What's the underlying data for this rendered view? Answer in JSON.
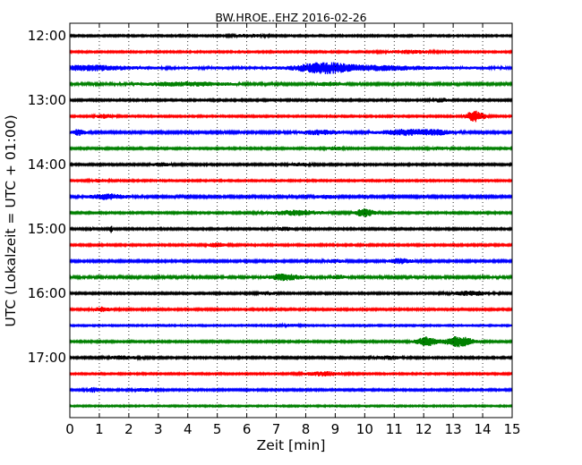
{
  "chart_data": {
    "type": "line",
    "title": "BW.HROE..EHZ 2016-02-26",
    "xlabel": "Zeit  [min]",
    "ylabel": "UTC (Lokalzeit = UTC + 01:00)",
    "xlim": [
      0,
      15
    ],
    "x_ticks": [
      "0",
      "1",
      "2",
      "3",
      "4",
      "5",
      "6",
      "7",
      "8",
      "9",
      "10",
      "11",
      "12",
      "13",
      "14",
      "15"
    ],
    "y_tick_labels": [
      "12:00",
      "13:00",
      "14:00",
      "15:00",
      "16:00",
      "17:00"
    ],
    "grid": "vertical dotted lines at each minute",
    "trace_colors": [
      "#000000",
      "#ff0000",
      "#0000ff",
      "#008000"
    ],
    "rows": [
      {
        "start": "12:00",
        "noise": 0.9,
        "events": [
          [
            6.1,
            0.5,
            1.5
          ]
        ]
      },
      {
        "start": "12:15",
        "noise": 0.9,
        "events": [
          [
            11.5,
            0.8,
            1.6
          ]
        ]
      },
      {
        "start": "12:30",
        "noise": 1.6,
        "events": [
          [
            0.7,
            1.2,
            2.2
          ],
          [
            8.6,
            0.9,
            5.0
          ],
          [
            10.5,
            1.5,
            1.8
          ]
        ]
      },
      {
        "start": "12:45",
        "noise": 1.2,
        "events": [
          [
            3.9,
            1.5,
            1.8
          ],
          [
            8.8,
            0.4,
            1.6
          ]
        ]
      },
      {
        "start": "13:00",
        "noise": 1.0,
        "events": [
          [
            12.6,
            0.3,
            1.8
          ]
        ]
      },
      {
        "start": "13:15",
        "noise": 0.9,
        "events": [
          [
            13.75,
            0.3,
            6.0
          ],
          [
            1.2,
            0.3,
            2.0
          ]
        ]
      },
      {
        "start": "13:30",
        "noise": 1.2,
        "events": [
          [
            0.3,
            0.2,
            3.0
          ],
          [
            8.5,
            0.6,
            2.2
          ],
          [
            11.4,
            0.8,
            3.0
          ],
          [
            12.5,
            0.5,
            2.0
          ]
        ]
      },
      {
        "start": "13:45",
        "noise": 1.0,
        "events": [
          [
            9.0,
            0.3,
            1.5
          ],
          [
            12.5,
            0.3,
            1.2
          ]
        ]
      },
      {
        "start": "14:00",
        "noise": 1.0,
        "events": [
          [
            3.1,
            0.3,
            1.8
          ],
          [
            7.8,
            0.3,
            1.5
          ]
        ]
      },
      {
        "start": "14:15",
        "noise": 0.9,
        "events": [
          [
            1.0,
            0.3,
            1.4
          ]
        ]
      },
      {
        "start": "14:30",
        "noise": 1.2,
        "events": [
          [
            1.3,
            0.6,
            2.6
          ],
          [
            8.7,
            0.3,
            1.5
          ]
        ]
      },
      {
        "start": "14:45",
        "noise": 1.0,
        "events": [
          [
            7.7,
            0.9,
            2.4
          ],
          [
            10.0,
            0.3,
            4.5
          ]
        ]
      },
      {
        "start": "15:00",
        "noise": 1.0,
        "events": [
          [
            0.7,
            0.05,
            3.0
          ],
          [
            1.4,
            0.05,
            4.0
          ],
          [
            7.3,
            0.3,
            1.6
          ]
        ]
      },
      {
        "start": "15:15",
        "noise": 1.0,
        "events": [
          [
            5.0,
            0.3,
            2.0
          ]
        ]
      },
      {
        "start": "15:30",
        "noise": 1.1,
        "events": [
          [
            9.0,
            0.3,
            1.6
          ],
          [
            11.2,
            0.4,
            2.4
          ]
        ]
      },
      {
        "start": "15:45",
        "noise": 1.3,
        "events": [
          [
            7.3,
            0.5,
            3.0
          ],
          [
            9.1,
            0.2,
            1.8
          ]
        ]
      },
      {
        "start": "16:00",
        "noise": 1.0,
        "events": [
          [
            13.6,
            0.6,
            2.2
          ],
          [
            6.7,
            0.3,
            1.4
          ]
        ]
      },
      {
        "start": "16:15",
        "noise": 1.0,
        "events": [
          [
            1.1,
            0.3,
            2.4
          ]
        ]
      },
      {
        "start": "16:30",
        "noise": 0.8,
        "events": [
          [
            7.5,
            0.3,
            1.2
          ]
        ]
      },
      {
        "start": "16:45",
        "noise": 1.0,
        "events": [
          [
            12.1,
            0.35,
            5.0
          ],
          [
            13.2,
            0.45,
            5.5
          ]
        ]
      },
      {
        "start": "17:00",
        "noise": 1.0,
        "events": [
          [
            1.8,
            0.5,
            1.6
          ],
          [
            10.8,
            0.4,
            1.8
          ]
        ]
      },
      {
        "start": "17:15",
        "noise": 0.9,
        "events": [
          [
            8.6,
            0.6,
            2.2
          ]
        ]
      },
      {
        "start": "17:30",
        "noise": 1.0,
        "events": [
          [
            0.8,
            0.2,
            2.2
          ],
          [
            2.5,
            0.3,
            1.4
          ]
        ]
      },
      {
        "start": "17:45",
        "noise": 0.8,
        "events": []
      }
    ]
  }
}
